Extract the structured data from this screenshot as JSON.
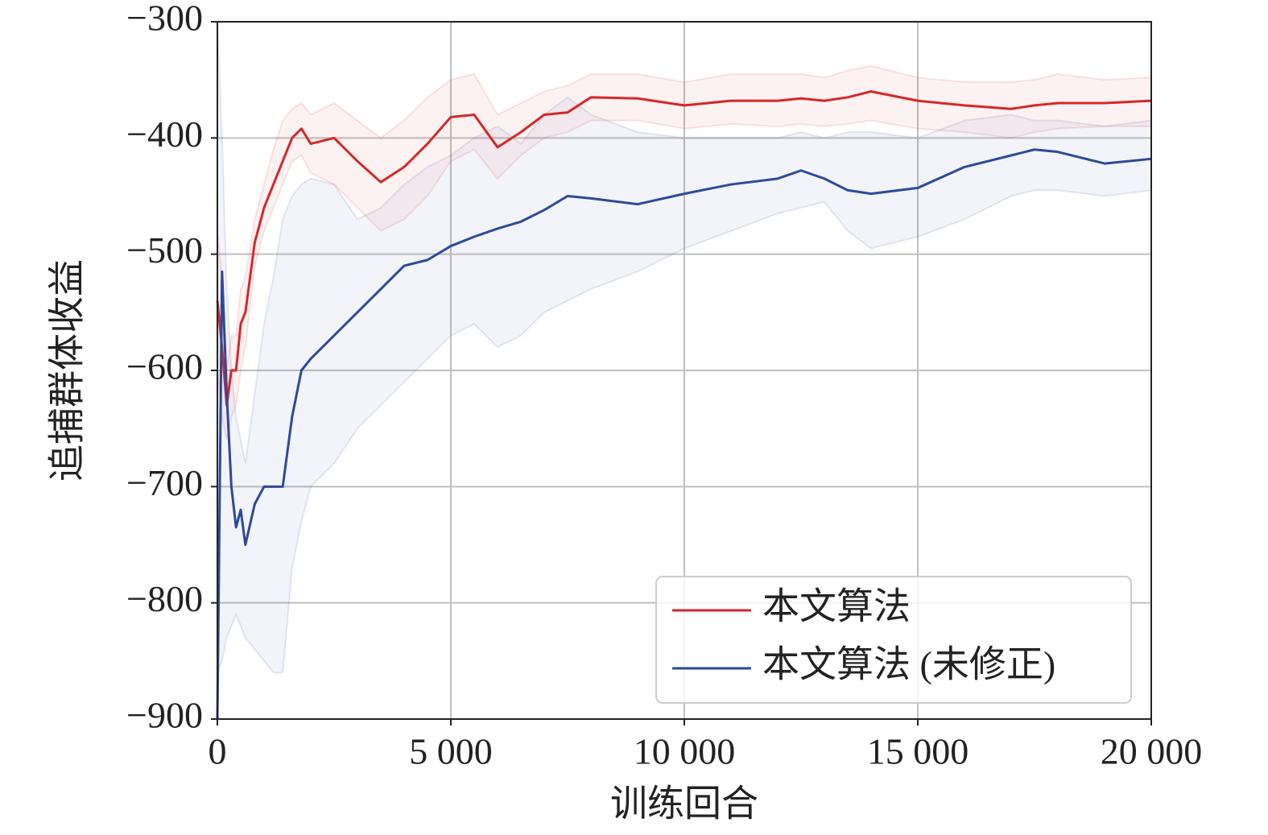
{
  "chart_data": {
    "type": "line",
    "x_label": "训练回合",
    "y_label": "追捕群体收益",
    "x": [
      0,
      100,
      200,
      300,
      400,
      500,
      600,
      800,
      1000,
      1200,
      1400,
      1600,
      1800,
      2000,
      2500,
      3000,
      3500,
      4000,
      4500,
      5000,
      5500,
      6000,
      6500,
      7000,
      7500,
      8000,
      9000,
      10000,
      11000,
      12000,
      12500,
      13000,
      13500,
      14000,
      15000,
      16000,
      17000,
      17500,
      18000,
      19000,
      20000
    ],
    "series": [
      {
        "name": "本文算法",
        "color": "#d62728",
        "values": [
          -540,
          -580,
          -630,
          -600,
          -600,
          -560,
          -550,
          -490,
          -460,
          -440,
          -420,
          -400,
          -392,
          -405,
          -400,
          -420,
          -438,
          -425,
          -405,
          -382,
          -380,
          -408,
          -395,
          -380,
          -378,
          -365,
          -366,
          -372,
          -368,
          -368,
          -366,
          -368,
          -365,
          -360,
          -368,
          -372,
          -375,
          -372,
          -370,
          -370,
          -368
        ],
        "lower": [
          -600,
          -640,
          -660,
          -640,
          -630,
          -600,
          -580,
          -510,
          -480,
          -460,
          -440,
          -420,
          -415,
          -430,
          -440,
          -460,
          -480,
          -470,
          -450,
          -420,
          -410,
          -435,
          -415,
          -400,
          -395,
          -385,
          -385,
          -392,
          -388,
          -390,
          -388,
          -390,
          -388,
          -385,
          -392,
          -395,
          -400,
          -395,
          -392,
          -390,
          -390
        ],
        "upper": [
          -480,
          -520,
          -600,
          -570,
          -570,
          -530,
          -520,
          -470,
          -440,
          -410,
          -385,
          -375,
          -370,
          -380,
          -370,
          -385,
          -400,
          -385,
          -365,
          -350,
          -345,
          -380,
          -370,
          -360,
          -355,
          -345,
          -345,
          -352,
          -345,
          -345,
          -345,
          -348,
          -342,
          -338,
          -348,
          -352,
          -352,
          -350,
          -345,
          -350,
          -348
        ]
      },
      {
        "name": "本文算法 (未修正)",
        "color": "#2c4a9a",
        "values": [
          -900,
          -515,
          -620,
          -700,
          -735,
          -720,
          -750,
          -715,
          -700,
          -700,
          -700,
          -640,
          -600,
          -590,
          -570,
          -550,
          -530,
          -510,
          -505,
          -493,
          -485,
          -478,
          -472,
          -462,
          -450,
          -452,
          -457,
          -448,
          -440,
          -435,
          -428,
          -435,
          -445,
          -448,
          -443,
          -425,
          -415,
          -410,
          -412,
          -422,
          -418
        ],
        "lower": [
          -860,
          -850,
          -830,
          -820,
          -810,
          -820,
          -830,
          -840,
          -850,
          -860,
          -860,
          -770,
          -730,
          -700,
          -680,
          -650,
          -630,
          -610,
          -590,
          -570,
          -560,
          -580,
          -570,
          -550,
          -540,
          -530,
          -515,
          -495,
          -480,
          -465,
          -460,
          -455,
          -480,
          -495,
          -485,
          -470,
          -450,
          -445,
          -445,
          -450,
          -445
        ],
        "upper": [
          -300,
          -400,
          -530,
          -600,
          -640,
          -660,
          -680,
          -620,
          -560,
          -520,
          -470,
          -450,
          -440,
          -435,
          -440,
          -470,
          -460,
          -440,
          -425,
          -415,
          -400,
          -390,
          -405,
          -380,
          -365,
          -380,
          -395,
          -400,
          -400,
          -400,
          -395,
          -400,
          -395,
          -395,
          -400,
          -385,
          -380,
          -385,
          -385,
          -390,
          -385
        ]
      }
    ],
    "xlim": [
      0,
      20000
    ],
    "xticks": [
      0,
      {
        "value": 5000,
        "label": "5 000"
      },
      {
        "value": 10000,
        "label": "10 000"
      },
      {
        "value": 15000,
        "label": "15 000"
      },
      {
        "value": 20000,
        "label": "20 000"
      }
    ],
    "ylim": [
      -900,
      -300
    ],
    "yticks": [
      {
        "value": -900,
        "label": "−900"
      },
      {
        "value": -800,
        "label": "−800"
      },
      {
        "value": -700,
        "label": "−700"
      },
      {
        "value": -600,
        "label": "−600"
      },
      {
        "value": -500,
        "label": "−500"
      },
      {
        "value": -400,
        "label": "−400"
      },
      {
        "value": -300,
        "label": "−300"
      }
    ],
    "grid": true,
    "legend": "lower right"
  }
}
